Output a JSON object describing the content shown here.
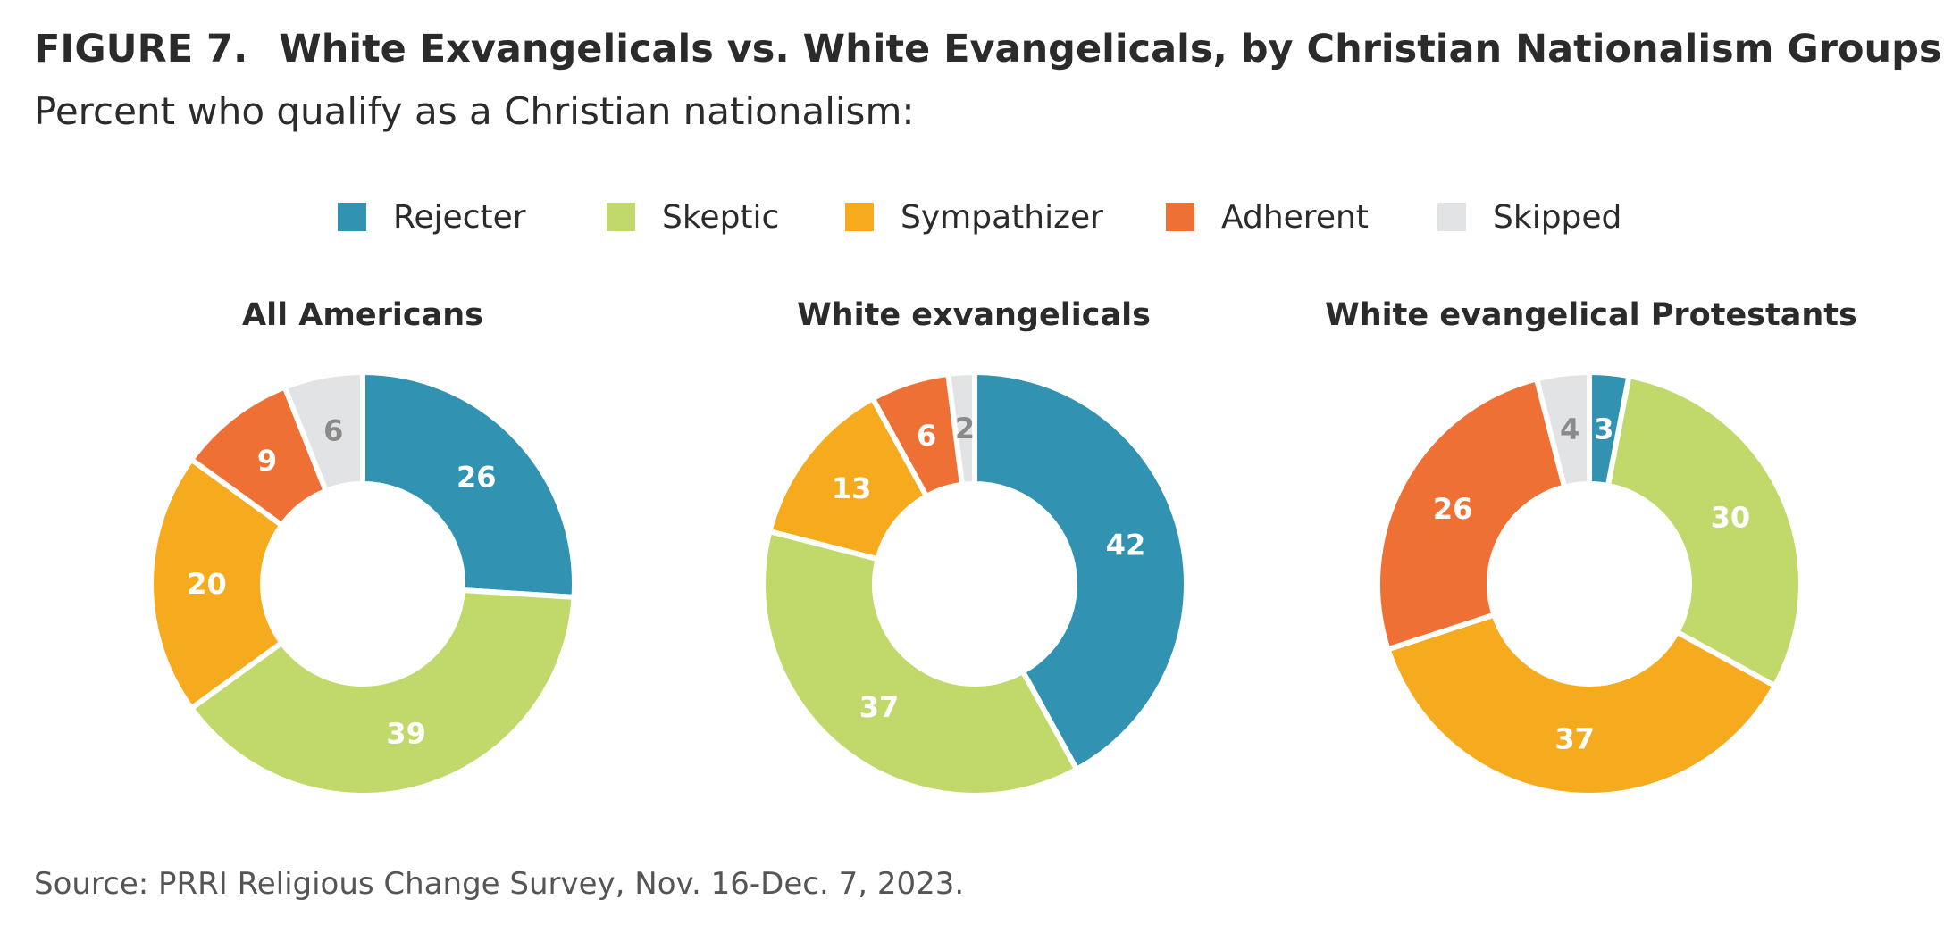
{
  "header": {
    "figure_label": "FIGURE 7.",
    "title": "White Exvangelicals vs. White Evangelicals, by Christian Nationalism Groups",
    "subtitle": "Percent who qualify as a Christian nationalism:"
  },
  "legend": {
    "placement": "top-center",
    "items": [
      {
        "label": "Rejecter",
        "color": "#3193b1"
      },
      {
        "label": "Skeptic",
        "color": "#c1d96b"
      },
      {
        "label": "Sympathizer",
        "color": "#f6ab1f"
      },
      {
        "label": "Adherent",
        "color": "#ee7034"
      },
      {
        "label": "Skipped",
        "color": "#e2e3e5"
      }
    ]
  },
  "chart_data": [
    {
      "type": "pie",
      "style": "donut",
      "title": "All Americans",
      "categories": [
        "Rejecter",
        "Skeptic",
        "Sympathizer",
        "Adherent",
        "Skipped"
      ],
      "values": [
        26,
        39,
        20,
        9,
        6
      ],
      "colors": [
        "#3193b1",
        "#c1d96b",
        "#f6ab1f",
        "#ee7034",
        "#e2e3e5"
      ]
    },
    {
      "type": "pie",
      "style": "donut",
      "title": "White exvangelicals",
      "categories": [
        "Rejecter",
        "Skeptic",
        "Sympathizer",
        "Adherent",
        "Skipped"
      ],
      "values": [
        42,
        37,
        13,
        6,
        2
      ],
      "colors": [
        "#3193b1",
        "#c1d96b",
        "#f6ab1f",
        "#ee7034",
        "#e2e3e5"
      ]
    },
    {
      "type": "pie",
      "style": "donut",
      "title": "White evangelical Protestants",
      "categories": [
        "Rejecter",
        "Skeptic",
        "Sympathizer",
        "Adherent",
        "Skipped"
      ],
      "values": [
        3,
        30,
        37,
        26,
        4
      ],
      "colors": [
        "#3193b1",
        "#c1d96b",
        "#f6ab1f",
        "#ee7034",
        "#e2e3e5"
      ]
    }
  ],
  "footer": {
    "source": "Source: PRRI Religious Change Survey, Nov. 16-Dec. 7, 2023."
  }
}
